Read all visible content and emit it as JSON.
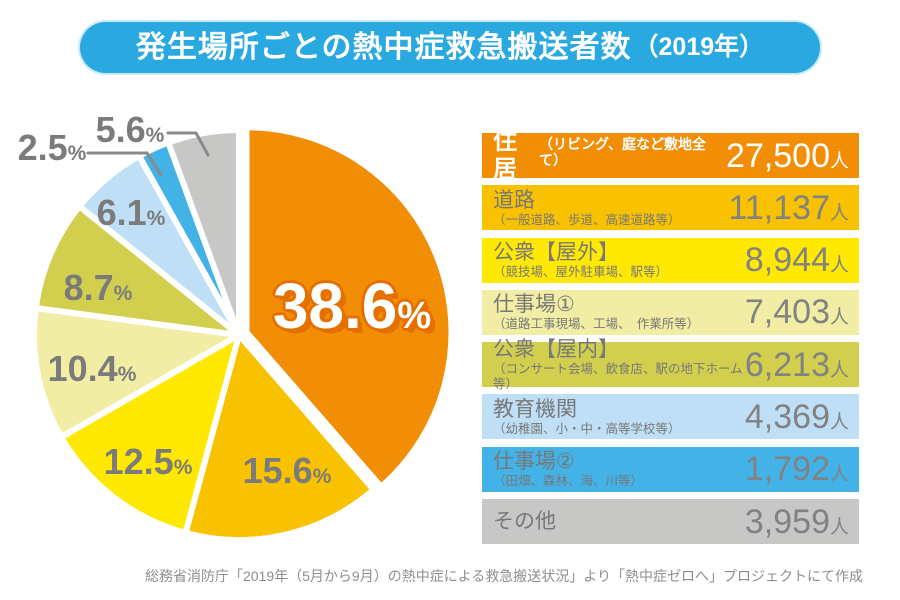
{
  "header": {
    "title_main": "発生場所ごとの熱中症救急搬送者数",
    "title_year": "（2019年）"
  },
  "chart_data": {
    "type": "pie",
    "title": "発生場所ごとの熱中症救急搬送者数（2019年）",
    "unit": "人",
    "percent_sign": "%",
    "direction": "clockwise",
    "start_angle": "12-oclock",
    "exploded_slice": "住居",
    "slices": [
      {
        "key": "residence",
        "label": "住居",
        "sublabel": "（リビング、庭など敷地全て）",
        "value": 27500,
        "value_text": "27,500",
        "pct": 38.6,
        "color": "#F18E05"
      },
      {
        "key": "road",
        "label": "道路",
        "sublabel": "（一般道路、歩道、高速道路等）",
        "value": 11137,
        "value_text": "11,137",
        "pct": 15.6,
        "color": "#F8C200"
      },
      {
        "key": "public-outdoor",
        "label": "公衆【屋外】",
        "sublabel": "（競技場、屋外駐車場、駅等）",
        "value": 8944,
        "value_text": "8,944",
        "pct": 12.5,
        "color": "#FFE802"
      },
      {
        "key": "workplace-1",
        "label": "仕事場①",
        "sublabel": "（道路工事現場、工場、　作業所等）",
        "value": 7403,
        "value_text": "7,403",
        "pct": 10.4,
        "color": "#F2EDA4"
      },
      {
        "key": "public-indoor",
        "label": "公衆【屋内】",
        "sublabel": "（コンサート会場、飲食店、駅の地下ホーム等）",
        "value": 6213,
        "value_text": "6,213",
        "pct": 8.7,
        "color": "#D1CF4D"
      },
      {
        "key": "education",
        "label": "教育機関",
        "sublabel": "（幼稚園、小・中・高等学校等）",
        "value": 4369,
        "value_text": "4,369",
        "pct": 6.1,
        "color": "#BEDFF5"
      },
      {
        "key": "workplace-2",
        "label": "仕事場②",
        "sublabel": "（田畑、森林、海、川等）",
        "value": 1792,
        "value_text": "1,792",
        "pct": 2.5,
        "color": "#42B2E7"
      },
      {
        "key": "other",
        "label": "その他",
        "sublabel": "",
        "value": 3959,
        "value_text": "3,959",
        "pct": 5.6,
        "color": "#C7C7C6"
      }
    ]
  },
  "footer": {
    "source": "総務省消防庁「2019年（5月から9月）の熱中症による救急搬送状況」より「熱中症ゼロへ」プロジェクトにて作成"
  },
  "colors": {
    "banner_blue": "#29A9E0",
    "label_gray": "#7B7B7B",
    "big_label_fill": "#FFFFFF",
    "big_label_outline": "#E56F00"
  }
}
